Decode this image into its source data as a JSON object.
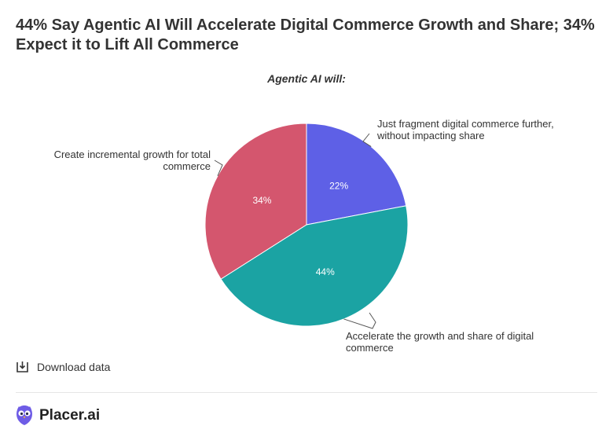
{
  "header": {
    "title": "44% Say Agentic AI Will Accelerate Digital Commerce Growth and Share; 34% Expect it to Lift All Commerce"
  },
  "chart_data": {
    "type": "pie",
    "title": "Agentic AI will:",
    "slices": [
      {
        "label_lines": [
          "Just fragment digital commerce further,",
          "without impacting share"
        ],
        "value": 22,
        "value_label": "22%",
        "color": "#5e60e6"
      },
      {
        "label_lines": [
          "Accelerate the growth and share of digital",
          "commerce"
        ],
        "value": 44,
        "value_label": "44%",
        "color": "#1ba3a3"
      },
      {
        "label_lines": [
          "Create incremental growth for total",
          "commerce"
        ],
        "value": 34,
        "value_label": "34%",
        "color": "#d4566e"
      }
    ]
  },
  "footer": {
    "download_label": "Download data",
    "brand_name": "Placer.ai",
    "brand_color": "#6e5ce6"
  }
}
